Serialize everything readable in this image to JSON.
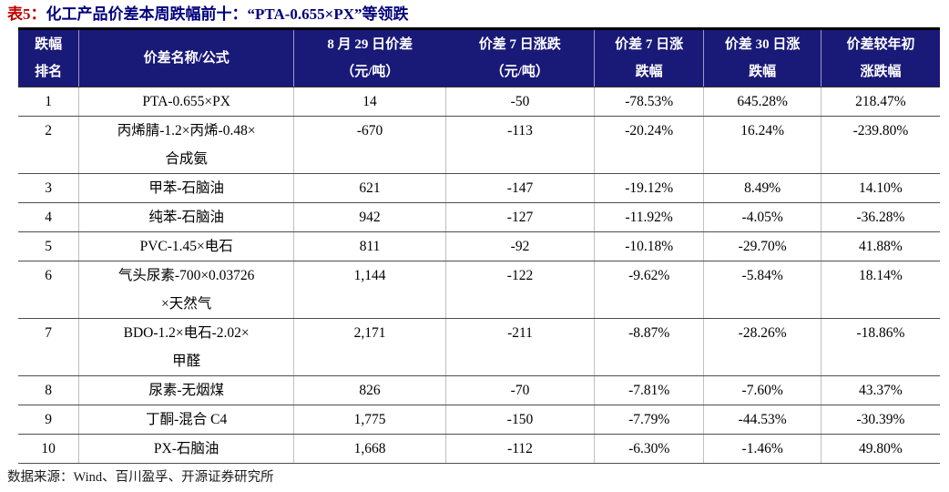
{
  "title": {
    "prefix": "表5：",
    "text": "化工产品价差本周跌幅前十：“PTA-0.655×PX”等领跌"
  },
  "colors": {
    "title_prefix": "#c00000",
    "title_text": "#00007d",
    "header_bg": "#191978",
    "header_text": "#ffffff"
  },
  "table": {
    "columns": [
      {
        "key": "rank",
        "label": "跌幅\n排名"
      },
      {
        "key": "name",
        "label": "价差名称/公式"
      },
      {
        "key": "spread",
        "label": "8 月 29 日价差\n（元/吨）"
      },
      {
        "key": "chg7",
        "label": "价差 7 日涨跌\n（元/吨）"
      },
      {
        "key": "pct7",
        "label": "价差 7 日涨\n跌幅"
      },
      {
        "key": "pct30",
        "label": "价差 30 日涨\n跌幅"
      },
      {
        "key": "pct_ytd",
        "label": "价差较年初\n涨跌幅"
      }
    ],
    "rows": [
      {
        "rank": "1",
        "name": "PTA-0.655×PX",
        "spread": "14",
        "chg7": "-50",
        "pct7": "-78.53%",
        "pct30": "645.28%",
        "pct_ytd": "218.47%"
      },
      {
        "rank": "2",
        "name": "丙烯腈-1.2×丙烯-0.48×\n合成氨",
        "spread": "-670",
        "chg7": "-113",
        "pct7": "-20.24%",
        "pct30": "16.24%",
        "pct_ytd": "-239.80%"
      },
      {
        "rank": "3",
        "name": "甲苯-石脑油",
        "spread": "621",
        "chg7": "-147",
        "pct7": "-19.12%",
        "pct30": "8.49%",
        "pct_ytd": "14.10%"
      },
      {
        "rank": "4",
        "name": "纯苯-石脑油",
        "spread": "942",
        "chg7": "-127",
        "pct7": "-11.92%",
        "pct30": "-4.05%",
        "pct_ytd": "-36.28%"
      },
      {
        "rank": "5",
        "name": "PVC-1.45×电石",
        "spread": "811",
        "chg7": "-92",
        "pct7": "-10.18%",
        "pct30": "-29.70%",
        "pct_ytd": "41.88%"
      },
      {
        "rank": "6",
        "name": "气头尿素-700×0.03726\n×天然气",
        "spread": "1,144",
        "chg7": "-122",
        "pct7": "-9.62%",
        "pct30": "-5.84%",
        "pct_ytd": "18.14%"
      },
      {
        "rank": "7",
        "name": "BDO-1.2×电石-2.02×\n甲醛",
        "spread": "2,171",
        "chg7": "-211",
        "pct7": "-8.87%",
        "pct30": "-28.26%",
        "pct_ytd": "-18.86%"
      },
      {
        "rank": "8",
        "name": "尿素-无烟煤",
        "spread": "826",
        "chg7": "-70",
        "pct7": "-7.81%",
        "pct30": "-7.60%",
        "pct_ytd": "43.37%"
      },
      {
        "rank": "9",
        "name": "丁酮-混合 C4",
        "spread": "1,775",
        "chg7": "-150",
        "pct7": "-7.79%",
        "pct30": "-44.53%",
        "pct_ytd": "-30.39%"
      },
      {
        "rank": "10",
        "name": "PX-石脑油",
        "spread": "1,668",
        "chg7": "-112",
        "pct7": "-6.30%",
        "pct30": "-1.46%",
        "pct_ytd": "49.80%"
      }
    ]
  },
  "footer": {
    "source": "数据来源：Wind、百川盈孚、开源证券研究所"
  }
}
